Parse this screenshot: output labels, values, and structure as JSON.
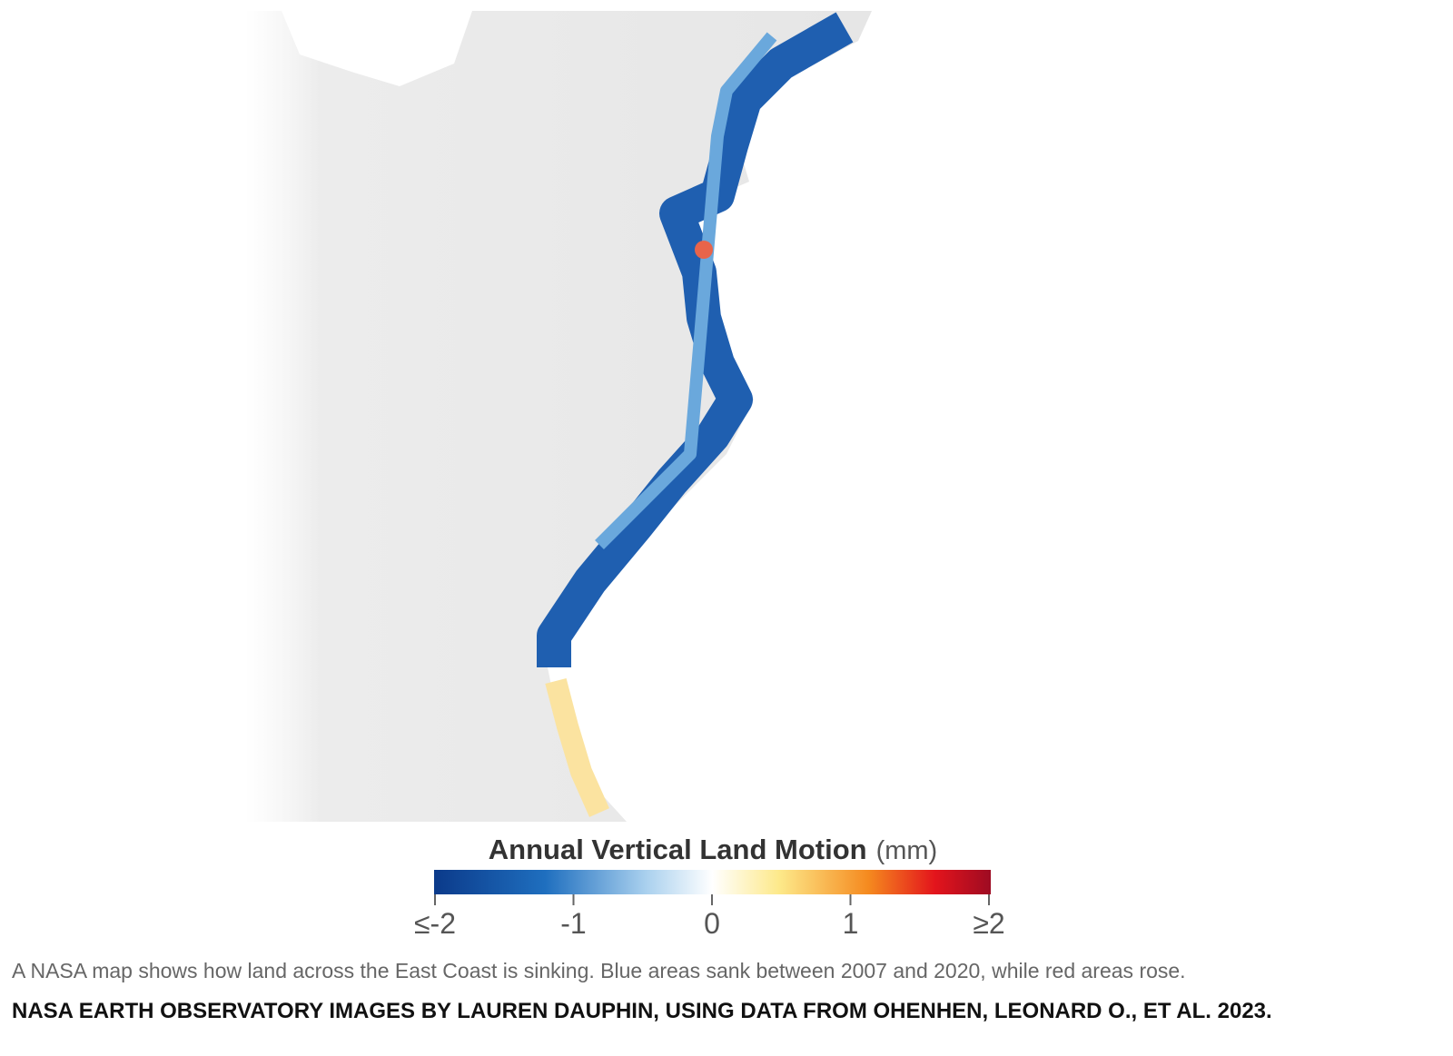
{
  "map": {
    "legend": {
      "title": "Annual Vertical Land Motion",
      "unit": "(mm)",
      "range": [
        -2,
        2
      ],
      "ticks": [
        {
          "value": -2,
          "label": "≤-2"
        },
        -1,
        0,
        1,
        {
          "value": 2,
          "label": "≥2"
        }
      ]
    },
    "caption": "A NASA map shows how land across the East Coast is sinking. Blue areas sank between 2007 and 2020, while red areas rose.",
    "credit": "NASA EARTH OBSERVATORY IMAGES BY LAUREN DAUPHIN, USING DATA FROM OHENHEN, LEONARD O., ET AL. 2023."
  }
}
